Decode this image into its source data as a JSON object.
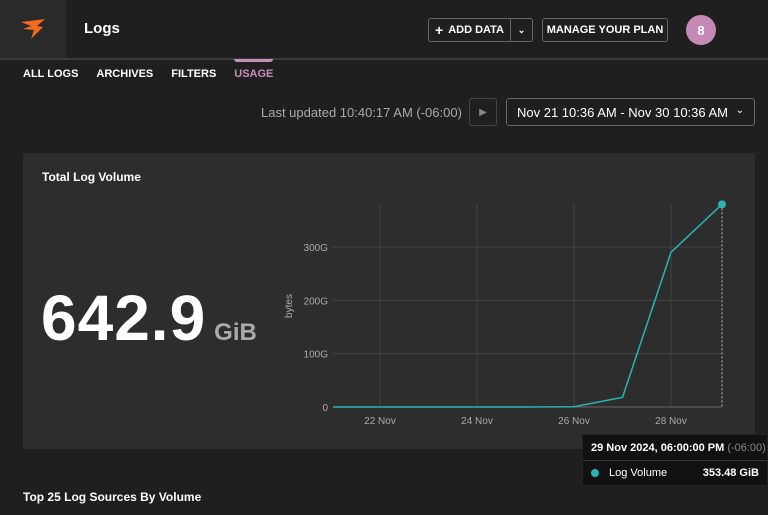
{
  "header": {
    "title": "Logs",
    "add_data": "ADD DATA",
    "manage_plan": "MANAGE YOUR PLAN",
    "avatar_initial": "8"
  },
  "tabs": [
    {
      "label": "ALL LOGS"
    },
    {
      "label": "ARCHIVES"
    },
    {
      "label": "FILTERS"
    },
    {
      "label": "USAGE",
      "active": true
    }
  ],
  "toolbar": {
    "last_updated": "Last updated 10:40:17 AM (-06:00)",
    "date_range": "Nov 21 10:36 AM - Nov 30 10:36 AM"
  },
  "panel": {
    "title": "Total Log Volume",
    "total_value": "642.9",
    "total_unit": "GiB"
  },
  "colors": {
    "accent": "#c98fb8",
    "series": "#2ab3b3",
    "logo": "#f26b1d"
  },
  "chart_data": {
    "type": "line",
    "ylabel": "bytes",
    "ylim": [
      0,
      380
    ],
    "yticks": [
      "0",
      "100G",
      "200G",
      "300G"
    ],
    "ytick_values": [
      0,
      100,
      200,
      300
    ],
    "xticks": [
      "22 Nov",
      "24 Nov",
      "26 Nov",
      "28 Nov"
    ],
    "xtick_values": [
      22,
      24,
      26,
      28
    ],
    "grid": true,
    "series": [
      {
        "name": "Log Volume",
        "x": [
          21,
          22,
          23,
          24,
          25,
          26,
          27,
          28,
          29
        ],
        "values": [
          0,
          0,
          0,
          0,
          0,
          0.5,
          18,
          290,
          380
        ]
      }
    ],
    "tooltip": {
      "date": "29 Nov 2024, 06:00:00 PM",
      "tz": "(-06:00)",
      "series": "Log Volume",
      "value": "353.48 GiB"
    }
  },
  "section2": {
    "title": "Top 25 Log Sources By Volume"
  }
}
